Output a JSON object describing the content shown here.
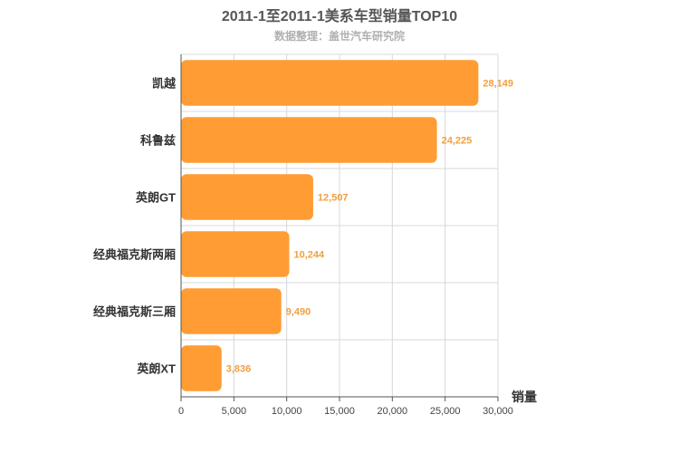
{
  "chart_data": {
    "type": "bar",
    "orientation": "horizontal",
    "title": "2011-1至2011-1美系车型销量TOP10",
    "subtitle": "数据整理：盖世汽车研究院",
    "xlabel": "销量",
    "categories": [
      "凯越",
      "科鲁兹",
      "英朗GT",
      "经典福克斯两厢",
      "经典福克斯三厢",
      "英朗XT"
    ],
    "values": [
      28149,
      24225,
      12507,
      10244,
      9490,
      3836
    ],
    "value_labels": [
      "28,149",
      "24,225",
      "12,507",
      "10,244",
      "9,490",
      "3,836"
    ],
    "xlim": [
      0,
      30000
    ],
    "xticks": [
      0,
      5000,
      10000,
      15000,
      20000,
      25000,
      30000
    ],
    "xtick_labels": [
      "0",
      "5,000",
      "10,000",
      "15,000",
      "20,000",
      "25,000",
      "30,000"
    ],
    "grid": true,
    "bar_color": "#ff9c33"
  }
}
